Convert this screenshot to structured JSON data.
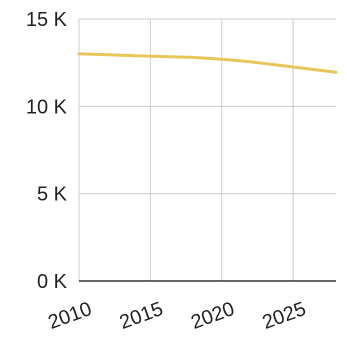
{
  "chart_data": {
    "type": "line",
    "title": "",
    "xlabel": "",
    "ylabel": "",
    "x": [
      2010,
      2012,
      2014,
      2016,
      2018,
      2020,
      2022,
      2024,
      2026,
      2028
    ],
    "series": [
      {
        "values": [
          13000,
          12950,
          12900,
          12850,
          12800,
          12700,
          12550,
          12350,
          12150,
          11950
        ],
        "color": "#e8c75a"
      }
    ],
    "xlim": [
      2010,
      2028
    ],
    "ylim": [
      0,
      15000
    ],
    "xticks": [
      2010,
      2015,
      2020,
      2025
    ],
    "xtick_labels": [
      "2010",
      "2015",
      "2020",
      "2025"
    ],
    "yticks": [
      0,
      5000,
      10000,
      15000
    ],
    "ytick_labels": [
      "0 K",
      "5 K",
      "10 K",
      "15 K"
    ],
    "grid": true,
    "legend": "none"
  }
}
